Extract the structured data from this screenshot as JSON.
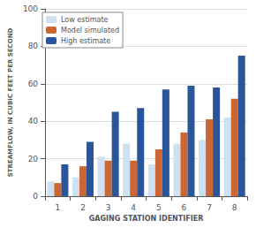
{
  "chart_data": {
    "type": "bar",
    "xlabel": "GAGING STATION IDENTIFIER",
    "ylabel": "STREAMFLOW, IN CUBIC FEET PER SECOND",
    "categories": [
      "1",
      "2",
      "3",
      "4",
      "5",
      "6",
      "7",
      "8"
    ],
    "series": [
      {
        "name": "Low estimate",
        "color": "#cfe0ee",
        "values": [
          8,
          10,
          21,
          28,
          17,
          28,
          30,
          42
        ]
      },
      {
        "name": "Model simulated",
        "color": "#cc6633",
        "values": [
          7,
          16,
          19,
          19,
          25,
          34,
          41,
          52
        ]
      },
      {
        "name": "High estimate",
        "color": "#2a5598",
        "values": [
          17,
          29,
          45,
          47,
          57,
          59,
          58,
          75
        ]
      }
    ],
    "ylim": [
      0,
      100
    ],
    "yticks": [
      0,
      20,
      40,
      60,
      80,
      100
    ],
    "grid": true,
    "legend": "upper left"
  }
}
